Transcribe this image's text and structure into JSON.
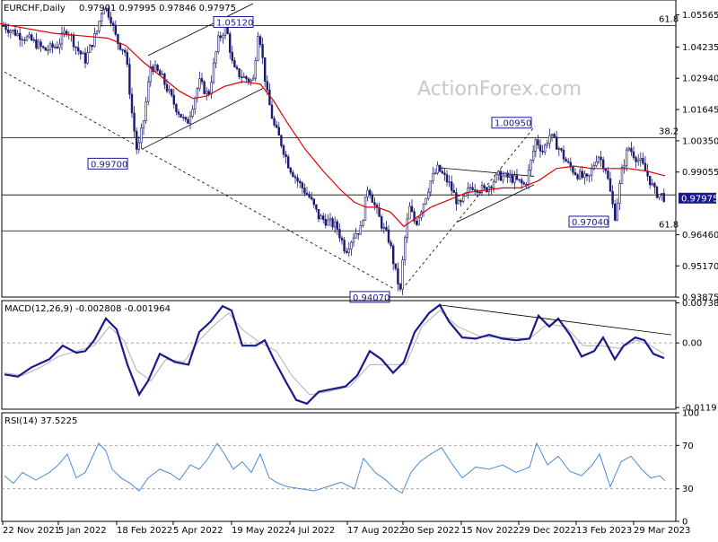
{
  "header": {
    "symbol": "EURCHF,Daily",
    "ohlc": "0.97901 0.97995 0.97846 0.97975"
  },
  "watermark": "ActionForex.com",
  "colors": {
    "candle": "#1a1a6e",
    "sma": "#e00000",
    "macd": "#1a1a8c",
    "signal": "#b0b0b0",
    "rsi": "#3a7fd5",
    "price_marker_bg": "#1a1a8c"
  },
  "chart_data": [
    {
      "type": "candlestick",
      "title": "EURCHF,Daily",
      "ylim": [
        0.9388,
        1.0618
      ],
      "y_ticks": [
        "1.05565",
        "1.04235",
        "1.02940",
        "1.01645",
        "1.00350",
        "0.99055",
        "0.97975",
        "0.96460",
        "0.95170",
        "0.93875"
      ],
      "x_ticks": [
        "22 Nov 2021",
        "5 Jan 2022",
        "18 Feb 2022",
        "5 Apr 2022",
        "19 May 2022",
        "4 Jul 2022",
        "17 Aug 2022",
        "30 Sep 2022",
        "15 Nov 2022",
        "29 Dec 2022",
        "13 Feb 2023",
        "29 Mar 2023"
      ],
      "price_path": [
        [
          0,
          1.052
        ],
        [
          18,
          1.048
        ],
        [
          35,
          1.045
        ],
        [
          50,
          1.041
        ],
        [
          64,
          1.043
        ],
        [
          75,
          1.05
        ],
        [
          85,
          1.042
        ],
        [
          95,
          1.037
        ],
        [
          108,
          1.049
        ],
        [
          115,
          1.06
        ],
        [
          123,
          1.055
        ],
        [
          130,
          1.045
        ],
        [
          140,
          1.04
        ],
        [
          147,
          1.015
        ],
        [
          153,
          0.998
        ],
        [
          160,
          1.012
        ],
        [
          168,
          1.035
        ],
        [
          180,
          1.03
        ],
        [
          195,
          1.018
        ],
        [
          208,
          1.01
        ],
        [
          222,
          1.028
        ],
        [
          232,
          1.022
        ],
        [
          243,
          1.045
        ],
        [
          252,
          1.051
        ],
        [
          260,
          1.033
        ],
        [
          270,
          1.03
        ],
        [
          282,
          1.028
        ],
        [
          288,
          1.051
        ],
        [
          297,
          1.024
        ],
        [
          305,
          1.01
        ],
        [
          312,
          1.004
        ],
        [
          322,
          0.993
        ],
        [
          333,
          0.986
        ],
        [
          345,
          0.98
        ],
        [
          355,
          0.972
        ],
        [
          365,
          0.97
        ],
        [
          375,
          0.968
        ],
        [
          385,
          0.958
        ],
        [
          395,
          0.965
        ],
        [
          402,
          0.967
        ],
        [
          410,
          0.985
        ],
        [
          418,
          0.976
        ],
        [
          426,
          0.968
        ],
        [
          434,
          0.962
        ],
        [
          440,
          0.95
        ],
        [
          446,
          0.941
        ],
        [
          450,
          0.96
        ],
        [
          456,
          0.976
        ],
        [
          463,
          0.969
        ],
        [
          472,
          0.978
        ],
        [
          480,
          0.987
        ],
        [
          488,
          0.992
        ],
        [
          500,
          0.986
        ],
        [
          512,
          0.976
        ],
        [
          525,
          0.985
        ],
        [
          540,
          0.983
        ],
        [
          555,
          0.989
        ],
        [
          570,
          0.988
        ],
        [
          585,
          0.985
        ],
        [
          590,
          0.992
        ],
        [
          597,
          1.004
        ],
        [
          605,
          0.999
        ],
        [
          612,
          1.006
        ],
        [
          622,
          1.001
        ],
        [
          632,
          0.994
        ],
        [
          642,
          0.99
        ],
        [
          655,
          0.987
        ],
        [
          666,
          0.998
        ],
        [
          675,
          0.992
        ],
        [
          685,
          0.972
        ],
        [
          693,
          0.991
        ],
        [
          700,
          1.001
        ],
        [
          708,
          0.997
        ],
        [
          715,
          0.994
        ],
        [
          723,
          0.988
        ],
        [
          730,
          0.982
        ],
        [
          737,
          0.981
        ],
        [
          741,
          0.9798
        ]
      ],
      "sma_path": [
        [
          0,
          1.052
        ],
        [
          30,
          1.05
        ],
        [
          60,
          1.048
        ],
        [
          90,
          1.047
        ],
        [
          120,
          1.046
        ],
        [
          140,
          1.043
        ],
        [
          160,
          1.036
        ],
        [
          180,
          1.03
        ],
        [
          200,
          1.024
        ],
        [
          215,
          1.021
        ],
        [
          230,
          1.022
        ],
        [
          250,
          1.026
        ],
        [
          270,
          1.028
        ],
        [
          290,
          1.027
        ],
        [
          305,
          1.02
        ],
        [
          320,
          1.011
        ],
        [
          340,
          1.0
        ],
        [
          360,
          0.991
        ],
        [
          380,
          0.983
        ],
        [
          395,
          0.978
        ],
        [
          408,
          0.976
        ],
        [
          420,
          0.976
        ],
        [
          435,
          0.974
        ],
        [
          450,
          0.968
        ],
        [
          465,
          0.972
        ],
        [
          480,
          0.976
        ],
        [
          500,
          0.979
        ],
        [
          520,
          0.982
        ],
        [
          540,
          0.983
        ],
        [
          560,
          0.984
        ],
        [
          580,
          0.984
        ],
        [
          600,
          0.987
        ],
        [
          620,
          0.992
        ],
        [
          640,
          0.993
        ],
        [
          660,
          0.992
        ],
        [
          680,
          0.992
        ],
        [
          700,
          0.992
        ],
        [
          720,
          0.991
        ],
        [
          741,
          0.989
        ]
      ],
      "horizontal_lines": [
        {
          "value": 1.0512,
          "label": "61.8"
        },
        {
          "value": 1.0047,
          "label": "38.2"
        },
        {
          "value": 0.9811,
          "label": ""
        },
        {
          "value": 0.9662,
          "label": "61.8"
        }
      ],
      "annotations": [
        {
          "label": "1.05120",
          "x": 252,
          "y": 1.0512
        },
        {
          "label": "0.99700",
          "x": 153,
          "y": 0.997
        },
        {
          "label": "0.94070",
          "x": 446,
          "y": 0.9407
        },
        {
          "label": "1.00950",
          "x": 597,
          "y": 1.0095
        },
        {
          "label": "0.97040",
          "x": 685,
          "y": 0.9704
        }
      ],
      "trendlines": [
        [
          [
            165,
            1.0388
          ],
          [
            282,
            1.0603
          ]
        ],
        [
          [
            158,
            1.0
          ],
          [
            293,
            1.0252
          ]
        ],
        [
          [
            490,
            0.9923
          ],
          [
            595,
            0.9888
          ]
        ],
        [
          [
            510,
            0.97
          ],
          [
            595,
            0.9853
          ]
        ]
      ],
      "dashed_trendlines": [
        [
          [
            5,
            1.032
          ],
          [
            440,
            0.942
          ]
        ],
        [
          [
            448,
            0.942
          ],
          [
            596,
            1.0095
          ]
        ]
      ],
      "last_price": "0.97975"
    },
    {
      "type": "line",
      "title": "MACD(12,26,9) -0.002808 -0.001964",
      "ylim": [
        -0.0122,
        0.0078
      ],
      "y_ticks": [
        "0.007384",
        "0.00",
        "-0.0119"
      ],
      "macd_path": [
        [
          5,
          -0.0058
        ],
        [
          20,
          -0.0062
        ],
        [
          35,
          -0.0045
        ],
        [
          55,
          -0.003
        ],
        [
          70,
          -0.0005
        ],
        [
          85,
          -0.0018
        ],
        [
          95,
          -0.0015
        ],
        [
          105,
          0.0005
        ],
        [
          118,
          0.0045
        ],
        [
          130,
          0.0025
        ],
        [
          142,
          -0.004
        ],
        [
          155,
          -0.0095
        ],
        [
          165,
          -0.007
        ],
        [
          178,
          -0.002
        ],
        [
          195,
          -0.0035
        ],
        [
          210,
          -0.004
        ],
        [
          222,
          0.002
        ],
        [
          235,
          0.004
        ],
        [
          248,
          0.0068
        ],
        [
          258,
          0.006
        ],
        [
          270,
          -0.0005
        ],
        [
          285,
          -0.0005
        ],
        [
          295,
          0.0005
        ],
        [
          305,
          -0.003
        ],
        [
          318,
          -0.007
        ],
        [
          330,
          -0.0105
        ],
        [
          342,
          -0.0112
        ],
        [
          355,
          -0.009
        ],
        [
          370,
          -0.0085
        ],
        [
          385,
          -0.008
        ],
        [
          398,
          -0.006
        ],
        [
          412,
          -0.0015
        ],
        [
          425,
          -0.003
        ],
        [
          438,
          -0.0055
        ],
        [
          450,
          -0.0035
        ],
        [
          462,
          0.002
        ],
        [
          478,
          0.0055
        ],
        [
          490,
          0.007
        ],
        [
          500,
          0.004
        ],
        [
          515,
          0.001
        ],
        [
          530,
          0.0008
        ],
        [
          545,
          0.0015
        ],
        [
          560,
          0.0008
        ],
        [
          575,
          0.0005
        ],
        [
          590,
          0.0008
        ],
        [
          600,
          0.005
        ],
        [
          612,
          0.003
        ],
        [
          622,
          0.0045
        ],
        [
          635,
          0.0015
        ],
        [
          648,
          -0.0025
        ],
        [
          662,
          -0.0015
        ],
        [
          672,
          0.001
        ],
        [
          685,
          -0.003
        ],
        [
          695,
          -0.0005
        ],
        [
          708,
          0.001
        ],
        [
          718,
          0.0005
        ],
        [
          728,
          -0.002
        ],
        [
          740,
          -0.0028
        ]
      ],
      "signal_path": [
        [
          5,
          -0.0055
        ],
        [
          25,
          -0.006
        ],
        [
          45,
          -0.0045
        ],
        [
          65,
          -0.0025
        ],
        [
          85,
          -0.0015
        ],
        [
          105,
          -0.0005
        ],
        [
          122,
          0.003
        ],
        [
          138,
          0.0005
        ],
        [
          152,
          -0.005
        ],
        [
          168,
          -0.007
        ],
        [
          185,
          -0.003
        ],
        [
          205,
          -0.0035
        ],
        [
          222,
          0.0005
        ],
        [
          240,
          0.0035
        ],
        [
          255,
          0.0055
        ],
        [
          270,
          0.0025
        ],
        [
          290,
          0.0
        ],
        [
          308,
          -0.0015
        ],
        [
          325,
          -0.006
        ],
        [
          345,
          -0.0095
        ],
        [
          365,
          -0.009
        ],
        [
          390,
          -0.008
        ],
        [
          412,
          -0.004
        ],
        [
          432,
          -0.004
        ],
        [
          452,
          -0.004
        ],
        [
          470,
          0.003
        ],
        [
          490,
          0.006
        ],
        [
          510,
          0.003
        ],
        [
          535,
          0.0012
        ],
        [
          560,
          0.001
        ],
        [
          590,
          0.0008
        ],
        [
          610,
          0.0035
        ],
        [
          630,
          0.003
        ],
        [
          650,
          -0.0005
        ],
        [
          670,
          -0.0005
        ],
        [
          690,
          -0.001
        ],
        [
          710,
          0.0005
        ],
        [
          725,
          -0.0005
        ],
        [
          740,
          -0.002
        ]
      ],
      "trendline": [
        [
          490,
          0.007
        ],
        [
          748,
          0.0015
        ]
      ]
    },
    {
      "type": "line",
      "title": "RSI(14) 37.5225",
      "ylim": [
        0,
        100
      ],
      "y_ticks": [
        "100",
        "70",
        "30",
        "0"
      ],
      "levels": [
        70,
        30
      ],
      "rsi_path": [
        [
          5,
          42
        ],
        [
          15,
          35
        ],
        [
          25,
          45
        ],
        [
          40,
          38
        ],
        [
          55,
          45
        ],
        [
          65,
          52
        ],
        [
          75,
          62
        ],
        [
          85,
          40
        ],
        [
          95,
          45
        ],
        [
          110,
          72
        ],
        [
          118,
          65
        ],
        [
          125,
          48
        ],
        [
          135,
          40
        ],
        [
          145,
          35
        ],
        [
          155,
          28
        ],
        [
          165,
          40
        ],
        [
          178,
          48
        ],
        [
          190,
          44
        ],
        [
          200,
          38
        ],
        [
          212,
          52
        ],
        [
          222,
          48
        ],
        [
          232,
          58
        ],
        [
          242,
          72
        ],
        [
          250,
          62
        ],
        [
          260,
          48
        ],
        [
          270,
          55
        ],
        [
          280,
          45
        ],
        [
          290,
          62
        ],
        [
          300,
          40
        ],
        [
          310,
          35
        ],
        [
          320,
          32
        ],
        [
          335,
          30
        ],
        [
          350,
          28
        ],
        [
          365,
          32
        ],
        [
          380,
          36
        ],
        [
          395,
          30
        ],
        [
          405,
          58
        ],
        [
          418,
          45
        ],
        [
          430,
          38
        ],
        [
          440,
          30
        ],
        [
          448,
          26
        ],
        [
          458,
          45
        ],
        [
          468,
          55
        ],
        [
          480,
          62
        ],
        [
          492,
          68
        ],
        [
          502,
          55
        ],
        [
          515,
          40
        ],
        [
          530,
          50
        ],
        [
          545,
          48
        ],
        [
          560,
          52
        ],
        [
          575,
          45
        ],
        [
          590,
          50
        ],
        [
          598,
          72
        ],
        [
          610,
          52
        ],
        [
          622,
          60
        ],
        [
          635,
          46
        ],
        [
          648,
          42
        ],
        [
          660,
          52
        ],
        [
          668,
          62
        ],
        [
          680,
          32
        ],
        [
          692,
          55
        ],
        [
          703,
          60
        ],
        [
          715,
          48
        ],
        [
          725,
          40
        ],
        [
          735,
          42
        ],
        [
          741,
          37.5
        ]
      ]
    }
  ]
}
